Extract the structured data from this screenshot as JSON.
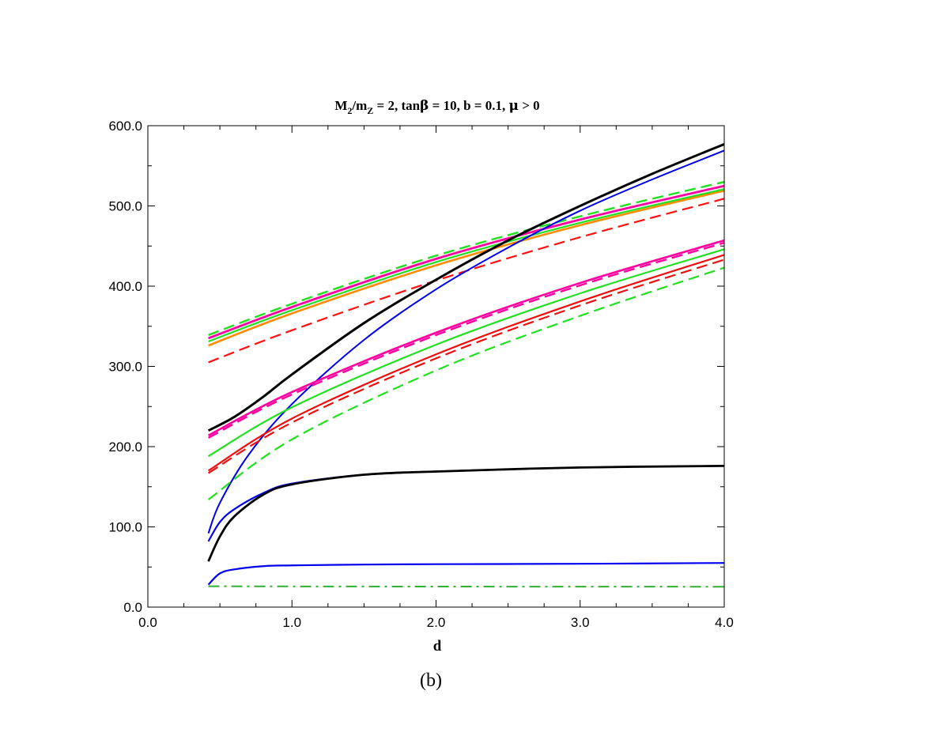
{
  "chart_data": {
    "type": "line",
    "title": {
      "parts": [
        {
          "t": "M"
        },
        {
          "t": "2",
          "sub": true
        },
        {
          "t": "/m"
        },
        {
          "t": "Z",
          "sub": true
        },
        {
          "t": " = 2, tan"
        },
        {
          "t": "β",
          "symbol": true
        },
        {
          "t": " = 10, b = 0.1, "
        },
        {
          "t": "μ",
          "symbol": true
        },
        {
          "t": " > 0"
        }
      ]
    },
    "xlabel": "d",
    "ylabel": "",
    "xlim": [
      0,
      4
    ],
    "ylim": [
      0,
      600
    ],
    "x_ticks": [
      "0.0",
      "1.0",
      "2.0",
      "3.0",
      "4.0"
    ],
    "y_ticks": [
      "0.0",
      "100.0",
      "200.0",
      "300.0",
      "400.0",
      "500.0",
      "600.0"
    ],
    "grid": false,
    "legend": "none",
    "caption": "(b)",
    "series": [
      {
        "color": "#ff8c00",
        "style": "solid",
        "width": 2.6,
        "x": [
          0.42,
          1.0,
          2.0,
          3.0,
          4.0
        ],
        "y": [
          326,
          366,
          426,
          476,
          519
        ]
      },
      {
        "color": "#20e020",
        "style": "solid",
        "width": 2.2,
        "x": [
          0.42,
          1.0,
          2.0,
          3.0,
          4.0
        ],
        "y": [
          331,
          370,
          430,
          479,
          521
        ]
      },
      {
        "color": "#ff00a0",
        "style": "solid",
        "width": 2.8,
        "x": [
          0.42,
          1.0,
          2.0,
          3.0,
          4.0
        ],
        "y": [
          335,
          374,
          434,
          483,
          525
        ]
      },
      {
        "color": "#ff1010",
        "style": "dashed",
        "width": 2.2,
        "x": [
          0.42,
          1.0,
          2.0,
          3.0,
          4.0
        ],
        "y": [
          305,
          345,
          407,
          461,
          509
        ]
      },
      {
        "color": "#20e020",
        "style": "dashed",
        "width": 2.4,
        "x": [
          0.42,
          1.0,
          2.0,
          3.0,
          4.0
        ],
        "y": [
          339,
          378,
          438,
          487,
          530
        ]
      },
      {
        "color": "#000000",
        "style": "solid",
        "width": 3.0,
        "x": [
          0.42,
          0.6,
          0.8,
          1.0,
          1.5,
          2.0,
          2.5,
          3.0,
          3.5,
          4.0
        ],
        "y": [
          220,
          237,
          262,
          290,
          354,
          408,
          457,
          500,
          540,
          577
        ]
      },
      {
        "color": "#0000ee",
        "style": "solid",
        "width": 2.0,
        "x": [
          0.42,
          0.5,
          0.7,
          1.0,
          1.5,
          2.0,
          2.5,
          3.0,
          3.5,
          4.0
        ],
        "y": [
          92,
          130,
          190,
          253,
          333,
          396,
          448,
          494,
          533,
          569
        ]
      },
      {
        "color": "#ff00a0",
        "style": "solid",
        "width": 2.6,
        "x": [
          0.42,
          1.0,
          2.0,
          3.0,
          4.0
        ],
        "y": [
          214,
          268,
          342,
          404,
          457
        ]
      },
      {
        "color": "#ff00a0",
        "style": "dashed",
        "width": 2.4,
        "x": [
          0.42,
          1.0,
          2.0,
          3.0,
          4.0
        ],
        "y": [
          211,
          265,
          339,
          401,
          454
        ]
      },
      {
        "color": "#20e020",
        "style": "solid",
        "width": 2.2,
        "x": [
          0.42,
          1.0,
          2.0,
          3.0,
          4.0
        ],
        "y": [
          188,
          249,
          327,
          391,
          446
        ]
      },
      {
        "color": "#ee1010",
        "style": "solid",
        "width": 2.2,
        "x": [
          0.42,
          1.0,
          2.0,
          3.0,
          4.0
        ],
        "y": [
          170,
          235,
          315,
          381,
          439
        ]
      },
      {
        "color": "#ee1010",
        "style": "dashed",
        "width": 2.2,
        "x": [
          0.42,
          1.0,
          2.0,
          3.0,
          4.0
        ],
        "y": [
          167,
          230,
          310,
          376,
          433
        ]
      },
      {
        "color": "#20e020",
        "style": "dashed",
        "width": 2.2,
        "x": [
          0.42,
          1.0,
          2.0,
          3.0,
          4.0
        ],
        "y": [
          134,
          209,
          295,
          363,
          423
        ]
      },
      {
        "color": "#0000ee",
        "style": "solid",
        "width": 2.2,
        "x": [
          0.42,
          0.5,
          0.6,
          0.8,
          1.0,
          1.5,
          2.0,
          3.0,
          4.0
        ],
        "y": [
          82,
          106,
          122,
          142,
          154,
          165,
          169,
          174,
          176
        ]
      },
      {
        "color": "#000000",
        "style": "solid",
        "width": 2.8,
        "x": [
          0.42,
          0.5,
          0.6,
          0.8,
          1.0,
          1.5,
          2.0,
          3.0,
          4.0
        ],
        "y": [
          57,
          88,
          113,
          140,
          153,
          165,
          169,
          174,
          176
        ]
      },
      {
        "color": "#0000ee",
        "style": "solid",
        "width": 2.2,
        "x": [
          0.42,
          0.5,
          0.6,
          0.8,
          1.0,
          1.5,
          2.0,
          3.0,
          4.0
        ],
        "y": [
          28,
          42,
          47,
          51,
          52,
          53,
          53.5,
          54,
          55
        ]
      },
      {
        "color": "#30b030",
        "style": "dashdot",
        "width": 2.0,
        "x": [
          0.42,
          1.0,
          2.0,
          3.0,
          4.0
        ],
        "y": [
          26,
          25.8,
          25.6,
          25.5,
          25.4
        ]
      }
    ]
  }
}
